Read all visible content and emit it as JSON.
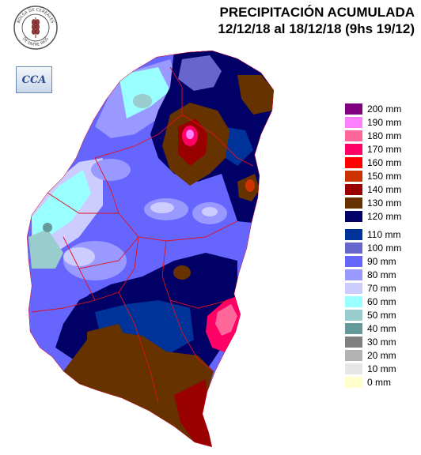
{
  "title_line1": "PRECIPITACIÓN ACUMULADA",
  "title_line2": "12/12/18 al 18/12/18 (9hs 19/12)",
  "logo": {
    "ring_text_top": "BOLSA DE CEREALES",
    "ring_text_bottom": "DE ENTRE RIOS",
    "icon": "wheat-seal-icon"
  },
  "badge": {
    "text": "CCA"
  },
  "legend": [
    {
      "label": "200 mm",
      "color": "#800080"
    },
    {
      "label": "190 mm",
      "color": "#ff80ff"
    },
    {
      "label": "180 mm",
      "color": "#ff6699"
    },
    {
      "label": "170 mm",
      "color": "#ff0066"
    },
    {
      "label": "160 mm",
      "color": "#ff0000"
    },
    {
      "label": "150 mm",
      "color": "#cc3300"
    },
    {
      "label": "140 mm",
      "color": "#990000"
    },
    {
      "label": "130 mm",
      "color": "#663300"
    },
    {
      "label": "120 mm",
      "color": "#000066"
    },
    {
      "label": "110 mm",
      "color": "#003399"
    },
    {
      "label": "100 mm",
      "color": "#6666cc"
    },
    {
      "label": "90 mm",
      "color": "#6666ff"
    },
    {
      "label": "80 mm",
      "color": "#9999ff"
    },
    {
      "label": "70 mm",
      "color": "#ccccff"
    },
    {
      "label": "60 mm",
      "color": "#99ffff"
    },
    {
      "label": "50 mm",
      "color": "#99cccc"
    },
    {
      "label": "40 mm",
      "color": "#669999"
    },
    {
      "label": "30 mm",
      "color": "#808080"
    },
    {
      "label": "20 mm",
      "color": "#b3b3b3"
    },
    {
      "label": "10 mm",
      "color": "#e6e6e6"
    },
    {
      "label": "0 mm",
      "color": "#ffffcc"
    }
  ]
}
